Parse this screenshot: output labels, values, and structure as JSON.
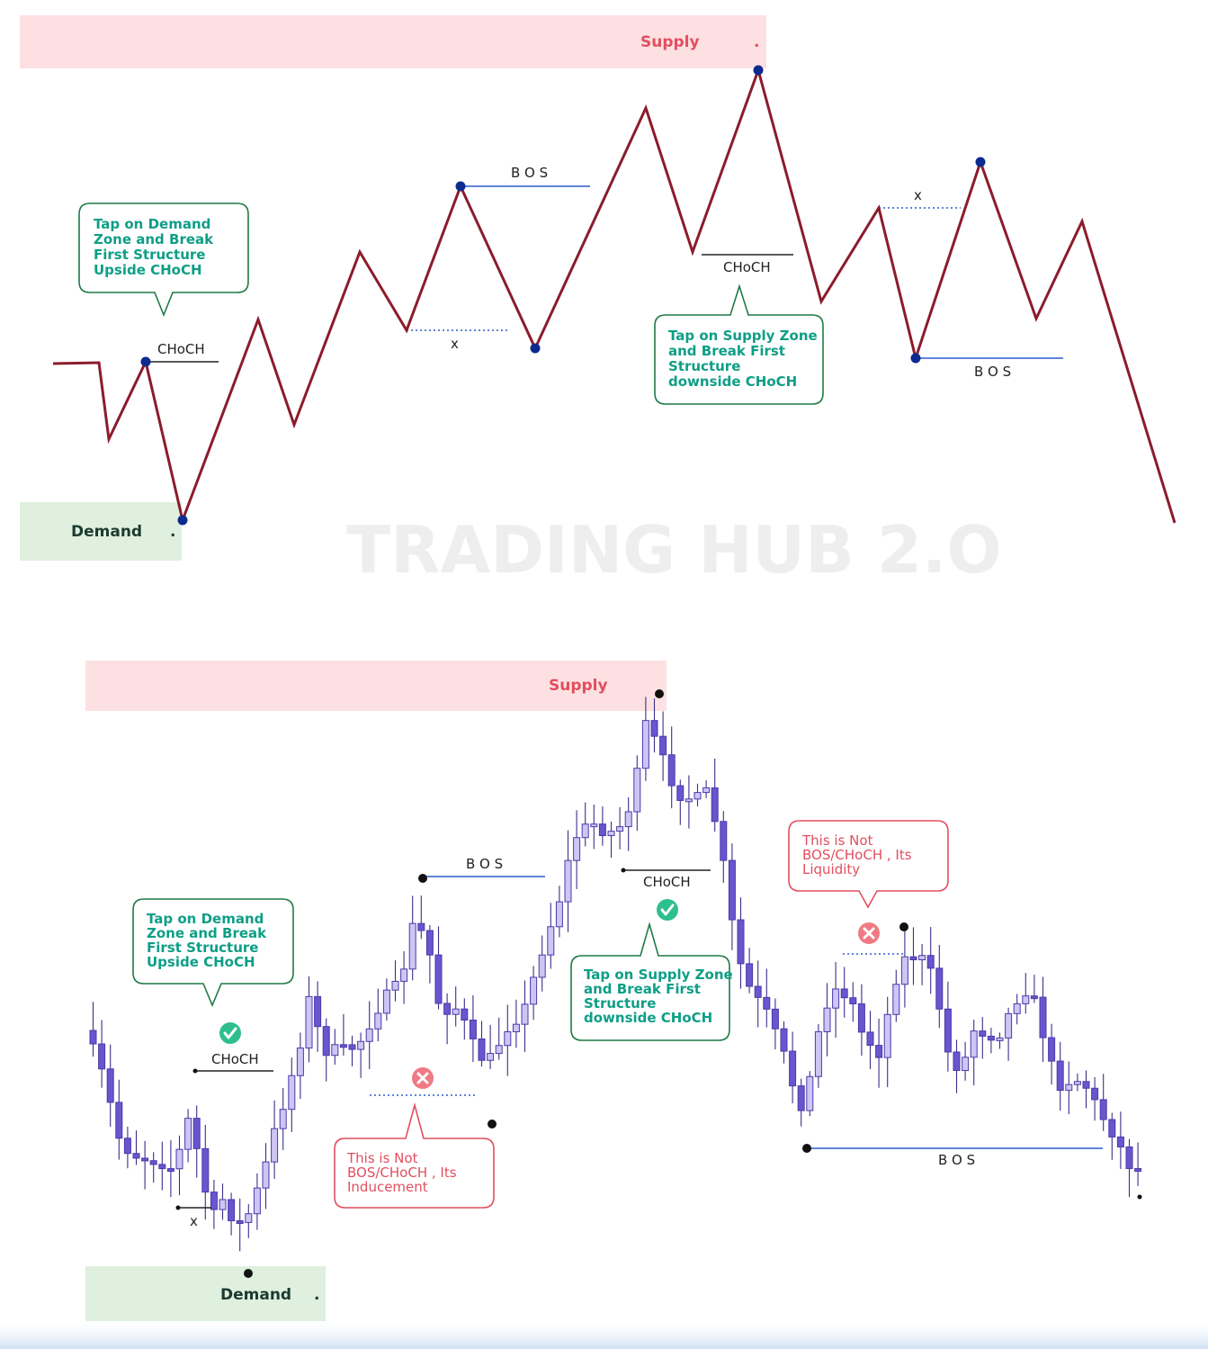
{
  "watermark": "TRADING HUB 2.O",
  "colors": {
    "supply_zone": "#fde1e2",
    "supply_text": "#e34e5f",
    "demand_zone": "#dff0de",
    "demand_text": "#1d3a30",
    "price_line": "#8b1c2b",
    "swing_dot": "#0d2b8f",
    "bos_line": "#2b5ccc",
    "bubble_green": "#0e9e86",
    "bubble_red": "#e34e5f",
    "candle_fill": "#c4b8ef",
    "candle_edge": "#4a3aa8",
    "bottom_glow": "#dbe8f7"
  },
  "top_diagram": {
    "supply": {
      "label": "Supply",
      "dot": "."
    },
    "demand": {
      "label": "Demand",
      "dot": "."
    },
    "labels": {
      "choch_up": "CHoCH",
      "x_first": "x",
      "bos_first": "B O S",
      "choch_down": "CHoCH",
      "x_second": "x",
      "bos_second": "B O S"
    },
    "callouts": {
      "demand": [
        "Tap on Demand",
        "Zone and Break",
        "First Structure",
        "Upside CHoCH"
      ],
      "supply": [
        "Tap on Supply Zone",
        "and Break First",
        "Structure",
        "downside  CHoCH"
      ]
    }
  },
  "bottom_chart": {
    "supply": {
      "label": "Supply"
    },
    "demand": {
      "label": "Demand",
      "dot": "."
    },
    "labels": {
      "choch_up": "CHoCH",
      "x_label": "x",
      "bos_first": "B O S",
      "choch_down": "CHoCH",
      "bos_second": "B O S"
    },
    "callouts": {
      "demand": [
        "Tap on Demand",
        "Zone and Break",
        "First Structure",
        "Upside CHoCH"
      ],
      "supply": [
        "Tap on Supply Zone",
        "and Break First",
        "Structure",
        "downside  CHoCH"
      ],
      "inducement": [
        "This is Not",
        "BOS/CHoCH , Its",
        "Inducement"
      ],
      "liquidity": [
        "This is Not",
        "BOS/CHoCH , Its",
        "Liquidity"
      ]
    },
    "markers": {
      "valid": "check-icon",
      "invalid": "cross-icon"
    }
  }
}
